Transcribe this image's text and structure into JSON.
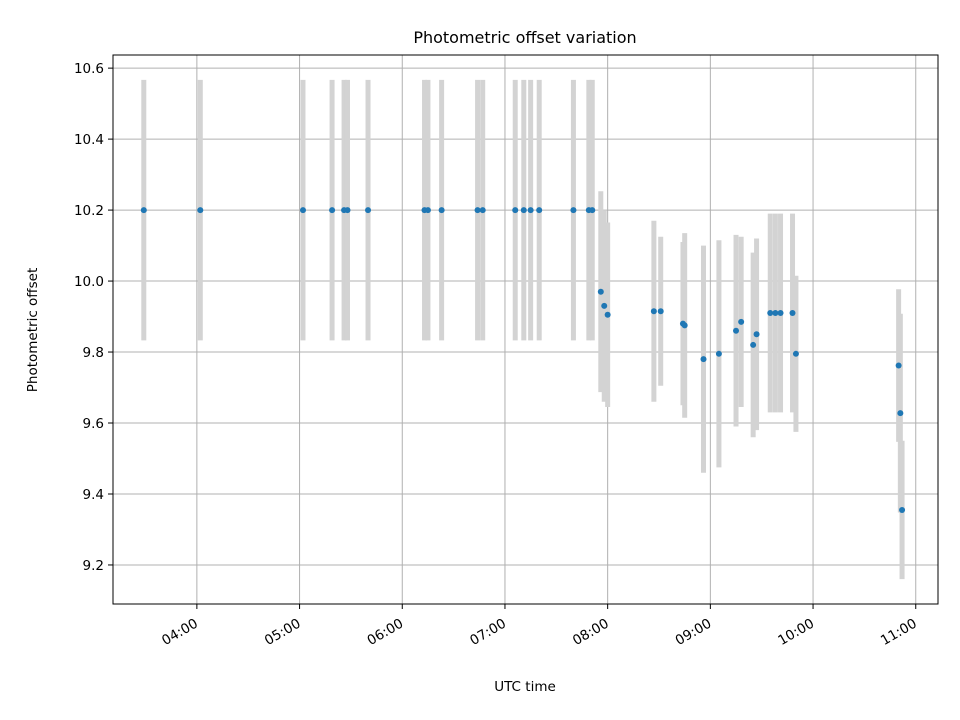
{
  "chart_data": {
    "type": "scatter",
    "title": "Photometric offset variation",
    "xlabel": "UTC time",
    "ylabel": "Photometric offset",
    "x_ticks": [
      "04:00",
      "05:00",
      "06:00",
      "07:00",
      "08:00",
      "09:00",
      "10:00",
      "11:00"
    ],
    "y_ticks": [
      "9.2",
      "9.4",
      "9.6",
      "9.8",
      "10.0",
      "10.2",
      "10.4",
      "10.6"
    ],
    "xlim": [
      "03:11",
      "11:13"
    ],
    "ylim": [
      9.09,
      10.637
    ],
    "grid": true,
    "marker_color": "#1f77b4",
    "errorbar_color": "#d3d3d3",
    "points": [
      {
        "t": "03:29",
        "y": 10.2,
        "err": 0.367
      },
      {
        "t": "04:02",
        "y": 10.2,
        "err": 0.367
      },
      {
        "t": "05:02",
        "y": 10.2,
        "err": 0.367
      },
      {
        "t": "05:19",
        "y": 10.2,
        "err": 0.367
      },
      {
        "t": "05:26",
        "y": 10.2,
        "err": 0.367
      },
      {
        "t": "05:28",
        "y": 10.2,
        "err": 0.367
      },
      {
        "t": "05:40",
        "y": 10.2,
        "err": 0.367
      },
      {
        "t": "06:13",
        "y": 10.2,
        "err": 0.367
      },
      {
        "t": "06:15",
        "y": 10.2,
        "err": 0.367
      },
      {
        "t": "06:23",
        "y": 10.2,
        "err": 0.367
      },
      {
        "t": "06:44",
        "y": 10.2,
        "err": 0.367
      },
      {
        "t": "06:47",
        "y": 10.2,
        "err": 0.367
      },
      {
        "t": "07:06",
        "y": 10.2,
        "err": 0.367
      },
      {
        "t": "07:11",
        "y": 10.2,
        "err": 0.367
      },
      {
        "t": "07:15",
        "y": 10.2,
        "err": 0.367
      },
      {
        "t": "07:20",
        "y": 10.2,
        "err": 0.367
      },
      {
        "t": "07:40",
        "y": 10.2,
        "err": 0.367
      },
      {
        "t": "07:49",
        "y": 10.2,
        "err": 0.367
      },
      {
        "t": "07:51",
        "y": 10.2,
        "err": 0.367
      },
      {
        "t": "07:56",
        "y": 9.97,
        "err": 0.283
      },
      {
        "t": "07:58",
        "y": 9.93,
        "err": 0.27
      },
      {
        "t": "08:00",
        "y": 9.905,
        "err": 0.26
      },
      {
        "t": "08:27",
        "y": 9.915,
        "err": 0.255
      },
      {
        "t": "08:31",
        "y": 9.915,
        "err": 0.21
      },
      {
        "t": "08:44",
        "y": 9.88,
        "err": 0.23
      },
      {
        "t": "08:45",
        "y": 9.875,
        "err": 0.26
      },
      {
        "t": "08:56",
        "y": 9.78,
        "err": 0.32
      },
      {
        "t": "09:05",
        "y": 9.795,
        "err": 0.32
      },
      {
        "t": "09:15",
        "y": 9.86,
        "err": 0.27
      },
      {
        "t": "09:18",
        "y": 9.885,
        "err": 0.24
      },
      {
        "t": "09:25",
        "y": 9.82,
        "err": 0.26
      },
      {
        "t": "09:27",
        "y": 9.85,
        "err": 0.27
      },
      {
        "t": "09:35",
        "y": 9.91,
        "err": 0.28
      },
      {
        "t": "09:38",
        "y": 9.91,
        "err": 0.28
      },
      {
        "t": "09:41",
        "y": 9.91,
        "err": 0.28
      },
      {
        "t": "09:48",
        "y": 9.91,
        "err": 0.28
      },
      {
        "t": "09:50",
        "y": 9.795,
        "err": 0.22
      },
      {
        "t": "10:50",
        "y": 9.762,
        "err": 0.215
      },
      {
        "t": "10:51",
        "y": 9.628,
        "err": 0.28
      },
      {
        "t": "10:52",
        "y": 9.355,
        "err": 0.195
      }
    ]
  }
}
